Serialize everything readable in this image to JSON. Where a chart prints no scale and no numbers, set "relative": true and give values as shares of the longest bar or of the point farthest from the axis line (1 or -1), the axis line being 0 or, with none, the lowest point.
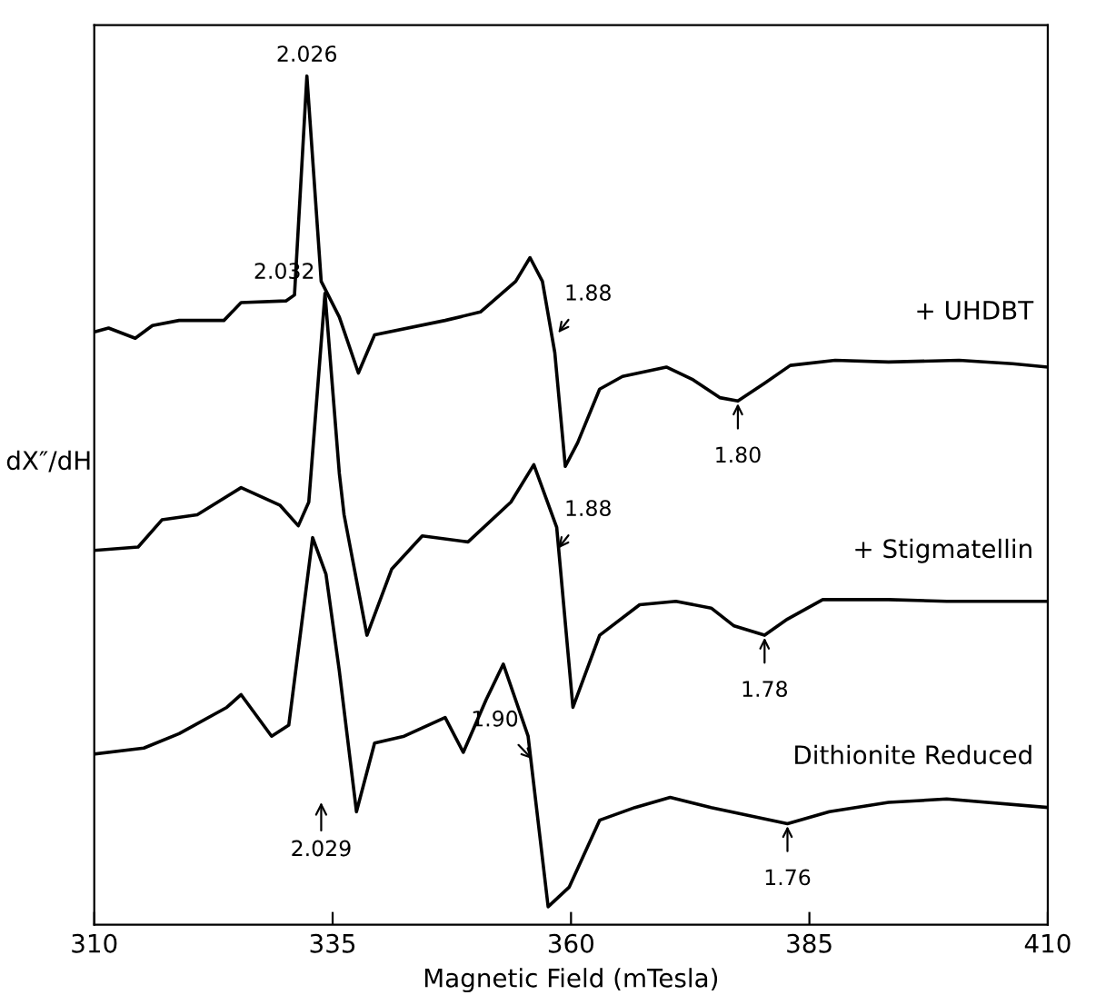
{
  "chart_data": {
    "type": "line",
    "relative": true,
    "xlabel": "Magnetic Field (mTesla)",
    "ylabel": "dX″/dH",
    "xlim": [
      310,
      410
    ],
    "xticks": [
      310,
      335,
      360,
      385,
      410
    ],
    "grid": false,
    "legend": false,
    "marker": "none",
    "line_style": "solid",
    "series": [
      {
        "name": "+ UHDBT",
        "color": "#000000",
        "x": [
          310.2,
          311.5,
          314.3,
          316.1,
          318.9,
          323.6,
          325.4,
          330.1,
          331.0,
          332.3,
          333.8,
          335.7,
          337.7,
          339.4,
          346.8,
          350.5,
          354.2,
          355.7,
          357.0,
          358.3,
          359.4,
          360.7,
          363.0,
          365.4,
          370.0,
          372.8,
          375.6,
          377.5,
          380.3,
          383.0,
          387.7,
          393.3,
          400.7,
          406.3,
          410.0
        ],
        "values": [
          0.699,
          0.703,
          0.691,
          0.706,
          0.712,
          0.712,
          0.733,
          0.735,
          0.742,
          1.0,
          0.758,
          0.716,
          0.65,
          0.695,
          0.712,
          0.722,
          0.758,
          0.786,
          0.758,
          0.674,
          0.54,
          0.568,
          0.631,
          0.646,
          0.657,
          0.642,
          0.621,
          0.617,
          0.638,
          0.659,
          0.665,
          0.663,
          0.665,
          0.661,
          0.657
        ]
      },
      {
        "name": "+ Stigmatellin",
        "color": "#000000",
        "x": [
          310.0,
          314.6,
          317.1,
          320.8,
          325.4,
          329.5,
          331.4,
          332.5,
          334.2,
          335.7,
          336.2,
          338.6,
          341.2,
          344.4,
          349.2,
          353.7,
          356.1,
          358.5,
          360.2,
          363.0,
          367.2,
          371.0,
          374.7,
          377.1,
          380.3,
          382.7,
          386.4,
          393.3,
          399.4,
          410.0
        ],
        "values": [
          0.441,
          0.445,
          0.477,
          0.483,
          0.515,
          0.494,
          0.47,
          0.498,
          0.744,
          0.532,
          0.483,
          0.341,
          0.419,
          0.458,
          0.451,
          0.498,
          0.542,
          0.468,
          0.256,
          0.341,
          0.377,
          0.381,
          0.373,
          0.352,
          0.341,
          0.36,
          0.383,
          0.383,
          0.381,
          0.381
        ]
      },
      {
        "name": "Dithionite Reduced",
        "color": "#000000",
        "x": [
          310.0,
          315.2,
          318.9,
          323.9,
          325.4,
          328.6,
          330.4,
          331.6,
          332.9,
          334.3,
          335.7,
          337.5,
          339.4,
          342.5,
          346.8,
          348.7,
          351.1,
          352.9,
          355.5,
          357.6,
          359.8,
          363.0,
          366.7,
          370.4,
          374.7,
          382.7,
          387.1,
          393.3,
          399.4,
          410.0
        ],
        "values": [
          0.201,
          0.208,
          0.225,
          0.256,
          0.271,
          0.222,
          0.235,
          0.341,
          0.456,
          0.413,
          0.299,
          0.133,
          0.214,
          0.222,
          0.244,
          0.203,
          0.265,
          0.307,
          0.222,
          0.021,
          0.044,
          0.123,
          0.138,
          0.15,
          0.138,
          0.119,
          0.133,
          0.144,
          0.148,
          0.138
        ]
      }
    ],
    "annotations": [
      {
        "text": "2.026",
        "x": 332.3,
        "y": 1.0
      },
      {
        "text": "2.032",
        "x": 334.2,
        "y": 0.744
      },
      {
        "text": "1.88",
        "x": 358.5,
        "y": 0.695
      },
      {
        "text": "1.80",
        "x": 377.5,
        "y": 0.617
      },
      {
        "text": "1.88",
        "x": 358.5,
        "y": 0.441
      },
      {
        "text": "1.78",
        "x": 380.3,
        "y": 0.341
      },
      "2.029",
      {
        "text": "1.90",
        "x": 356.1,
        "y": 0.193
      },
      {
        "text": "1.76",
        "x": 382.7,
        "y": 0.119
      }
    ]
  }
}
